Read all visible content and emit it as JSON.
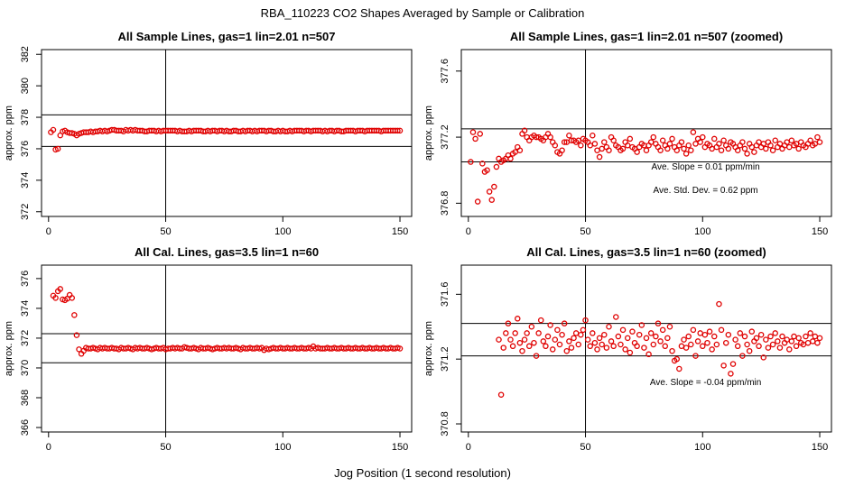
{
  "figure": {
    "title": "RBA_110223  CO2 Shapes Averaged by Sample or Calibration",
    "xlabel": "Jog Position (1 second resolution)",
    "marker_color": "#e00000"
  },
  "chart_data": [
    {
      "type": "scatter",
      "title": "All Sample Lines, gas=1 lin=2.01 n=507",
      "xlabel": "",
      "ylabel": "approx. ppm",
      "xlim": [
        -3,
        155
      ],
      "ylim": [
        371.7,
        382.3
      ],
      "x_ticks": [
        0,
        50,
        100,
        150
      ],
      "y_ticks": [
        372,
        374,
        376,
        378,
        380,
        382
      ],
      "hlines": [
        378.15,
        376.15
      ],
      "vline": 50,
      "annotations": [],
      "series": [
        {
          "start": 1,
          "values": [
            377.05,
            377.2,
            375.95,
            376.0,
            376.85,
            377.1,
            377.15,
            377.05,
            377.0,
            377.0,
            376.95,
            376.85,
            376.95,
            377.0,
            377.05,
            377.05,
            377.05,
            377.1,
            377.05,
            377.1,
            377.1,
            377.15,
            377.1,
            377.15,
            377.1,
            377.15,
            377.2,
            377.2,
            377.15,
            377.15,
            377.15,
            377.1,
            377.2,
            377.15,
            377.2,
            377.15,
            377.2,
            377.15,
            377.15,
            377.15,
            377.1,
            377.1,
            377.15,
            377.15,
            377.15,
            377.1,
            377.15,
            377.1,
            377.15,
            377.15,
            377.15,
            377.15,
            377.15,
            377.15,
            377.1,
            377.15,
            377.1,
            377.1,
            377.1,
            377.15,
            377.1,
            377.15,
            377.15,
            377.15,
            377.15,
            377.1,
            377.1,
            377.15,
            377.1,
            377.15,
            377.15,
            377.1,
            377.15,
            377.15,
            377.1,
            377.15,
            377.1,
            377.1,
            377.15,
            377.15,
            377.1,
            377.1,
            377.15,
            377.1,
            377.15,
            377.15,
            377.1,
            377.15,
            377.1,
            377.15,
            377.15,
            377.15,
            377.1,
            377.15,
            377.15,
            377.1,
            377.1,
            377.15,
            377.1,
            377.15,
            377.1,
            377.1,
            377.15,
            377.1,
            377.15,
            377.15,
            377.15,
            377.15,
            377.1,
            377.15,
            377.15,
            377.1,
            377.15,
            377.15,
            377.15,
            377.15,
            377.1,
            377.15,
            377.1,
            377.15,
            377.15,
            377.1,
            377.15,
            377.15,
            377.1,
            377.1,
            377.15,
            377.15,
            377.15,
            377.15,
            377.1,
            377.15,
            377.15,
            377.15,
            377.1,
            377.15,
            377.15,
            377.15,
            377.15,
            377.15,
            377.15,
            377.1,
            377.15,
            377.15,
            377.15,
            377.15,
            377.15,
            377.15,
            377.15,
            377.15
          ]
        }
      ]
    },
    {
      "type": "scatter",
      "title": "All Sample Lines, gas=1 lin=2.01 n=507 (zoomed)",
      "xlabel": "",
      "ylabel": "approx. ppm",
      "xlim": [
        -3,
        155
      ],
      "ylim": [
        376.72,
        377.73
      ],
      "x_ticks": [
        0,
        50,
        100,
        150
      ],
      "y_ticks": [
        376.8,
        377.2,
        377.6
      ],
      "y_tick_labels": [
        "376.8",
        "377.2",
        "377.6"
      ],
      "hlines": [
        377.25,
        377.05
      ],
      "vline": 50,
      "annotations": [
        "Ave. Slope =  0.01  ppm/min",
        "Ave. Std. Dev. =  0.62  ppm"
      ],
      "series": [
        {
          "start": 1,
          "values": [
            377.05,
            377.23,
            377.19,
            376.81,
            377.22,
            377.04,
            376.99,
            377.0,
            376.87,
            376.82,
            376.9,
            377.02,
            377.07,
            377.05,
            377.06,
            377.07,
            377.09,
            377.07,
            377.1,
            377.11,
            377.14,
            377.12,
            377.22,
            377.24,
            377.2,
            377.18,
            377.2,
            377.21,
            377.2,
            377.2,
            377.19,
            377.18,
            377.2,
            377.22,
            377.2,
            377.17,
            377.15,
            377.11,
            377.1,
            377.12,
            377.17,
            377.17,
            377.21,
            377.18,
            377.18,
            377.17,
            377.18,
            377.15,
            377.19,
            377.18,
            377.17,
            377.15,
            377.21,
            377.16,
            377.12,
            377.08,
            377.13,
            377.17,
            377.14,
            377.12,
            377.2,
            377.18,
            377.15,
            377.14,
            377.12,
            377.13,
            377.17,
            377.15,
            377.19,
            377.14,
            377.13,
            377.11,
            377.14,
            377.16,
            377.15,
            377.12,
            377.15,
            377.17,
            377.2,
            377.16,
            377.14,
            377.12,
            377.18,
            377.15,
            377.13,
            377.16,
            377.19,
            377.14,
            377.12,
            377.15,
            377.17,
            377.13,
            377.1,
            377.15,
            377.12,
            377.23,
            377.16,
            377.19,
            377.17,
            377.2,
            377.14,
            377.16,
            377.15,
            377.13,
            377.19,
            377.14,
            377.16,
            377.12,
            377.18,
            377.15,
            377.13,
            377.17,
            377.16,
            377.14,
            377.12,
            377.15,
            377.17,
            377.13,
            377.1,
            377.16,
            377.14,
            377.11,
            377.15,
            377.17,
            377.14,
            377.16,
            377.13,
            377.17,
            377.15,
            377.12,
            377.18,
            377.14,
            377.16,
            377.13,
            377.15,
            377.17,
            377.14,
            377.18,
            377.15,
            377.16,
            377.13,
            377.17,
            377.15,
            377.14,
            377.16,
            377.18,
            377.15,
            377.16,
            377.2,
            377.17
          ]
        }
      ]
    },
    {
      "type": "scatter",
      "title": "All Cal. Lines, gas=3.5 lin=1 n=60",
      "xlabel": "",
      "ylabel": "approx. ppm",
      "xlim": [
        -3,
        155
      ],
      "ylim": [
        365.7,
        376.9
      ],
      "x_ticks": [
        0,
        50,
        100,
        150
      ],
      "y_ticks": [
        366,
        368,
        370,
        372,
        374,
        376
      ],
      "hlines": [
        372.3,
        370.35
      ],
      "vline": 50,
      "annotations": [],
      "series": [
        {
          "start": 2,
          "values": [
            374.85,
            374.7,
            375.15,
            375.3,
            374.6,
            374.55,
            374.65,
            374.9,
            374.7,
            373.55,
            372.2,
            371.25,
            370.95,
            371.15,
            371.35,
            371.3,
            371.3,
            371.35,
            371.3,
            371.25,
            371.35,
            371.3,
            371.35,
            371.3,
            371.3,
            371.35,
            371.3,
            371.3,
            371.25,
            371.35,
            371.3,
            371.3,
            371.35,
            371.3,
            371.25,
            371.35,
            371.3,
            371.35,
            371.3,
            371.3,
            371.35,
            371.3,
            371.25,
            371.3,
            371.35,
            371.3,
            371.3,
            371.35,
            371.25,
            371.3,
            371.3,
            371.35,
            371.3,
            371.35,
            371.3,
            371.3,
            371.4,
            371.35,
            371.3,
            371.3,
            371.35,
            371.3,
            371.25,
            371.35,
            371.3,
            371.3,
            371.35,
            371.3,
            371.25,
            371.3,
            371.35,
            371.3,
            371.3,
            371.35,
            371.3,
            371.35,
            371.3,
            371.3,
            371.35,
            371.3,
            371.25,
            371.35,
            371.3,
            371.3,
            371.35,
            371.3,
            371.3,
            371.35,
            371.3,
            371.35,
            371.2,
            371.3,
            371.25,
            371.3,
            371.35,
            371.3,
            371.3,
            371.35,
            371.3,
            371.3,
            371.35,
            371.3,
            371.3,
            371.35,
            371.3,
            371.3,
            371.35,
            371.3,
            371.3,
            371.35,
            371.3,
            371.45,
            371.3,
            371.35,
            371.3,
            371.3,
            371.3,
            371.35,
            371.3,
            371.3,
            371.35,
            371.3,
            371.3,
            371.35,
            371.3,
            371.3,
            371.35,
            371.3,
            371.3,
            371.35,
            371.3,
            371.3,
            371.35,
            371.3,
            371.3,
            371.35,
            371.3,
            371.3,
            371.35,
            371.3,
            371.3,
            371.35,
            371.3,
            371.3,
            371.35,
            371.3,
            371.3,
            371.35,
            371.3
          ]
        }
      ]
    },
    {
      "type": "scatter",
      "title": "All Cal. Lines, gas=3.5 lin=1 n=60 (zoomed)",
      "xlabel": "",
      "ylabel": "approx. ppm",
      "xlim": [
        -3,
        155
      ],
      "ylim": [
        370.75,
        371.78
      ],
      "x_ticks": [
        0,
        50,
        100,
        150
      ],
      "y_ticks": [
        370.8,
        371.2,
        371.6
      ],
      "y_tick_labels": [
        "370.8",
        "371.2",
        "371.6"
      ],
      "hlines": [
        371.42,
        371.22
      ],
      "vline": 50,
      "annotations": [
        "Ave. Slope =  -0.04  ppm/min"
      ],
      "series": [
        {
          "start": 13,
          "values": [
            371.32,
            370.98,
            371.27,
            371.36,
            371.42,
            371.32,
            371.28,
            371.36,
            371.45,
            371.3,
            371.25,
            371.32,
            371.36,
            371.28,
            371.4,
            371.3,
            371.22,
            371.36,
            371.44,
            371.31,
            371.28,
            371.34,
            371.41,
            371.26,
            371.32,
            371.38,
            371.29,
            371.35,
            371.42,
            371.25,
            371.31,
            371.27,
            371.33,
            371.36,
            371.29,
            371.35,
            371.38,
            371.44,
            371.32,
            371.28,
            371.36,
            371.3,
            371.26,
            371.33,
            371.29,
            371.35,
            371.27,
            371.4,
            371.31,
            371.28,
            371.46,
            371.34,
            371.29,
            371.38,
            371.26,
            371.33,
            371.24,
            371.37,
            371.3,
            371.28,
            371.35,
            371.41,
            371.27,
            371.33,
            371.23,
            371.36,
            371.29,
            371.34,
            371.42,
            371.31,
            371.38,
            371.28,
            371.33,
            371.4,
            371.25,
            371.19,
            371.2,
            371.14,
            371.28,
            371.32,
            371.27,
            371.34,
            371.29,
            371.38,
            371.22,
            371.31,
            371.36,
            371.28,
            371.35,
            371.3,
            371.37,
            371.26,
            371.34,
            371.29,
            371.54,
            371.38,
            371.16,
            371.3,
            371.35,
            371.11,
            371.17,
            371.32,
            371.28,
            371.36,
            371.22,
            371.34,
            371.29,
            371.25,
            371.37,
            371.31,
            371.33,
            371.28,
            371.35,
            371.21,
            371.32,
            371.27,
            371.34,
            371.29,
            371.36,
            371.31,
            371.27,
            371.34,
            371.3,
            371.32,
            371.26,
            371.31,
            371.34,
            371.28,
            371.33,
            371.3,
            371.29,
            371.34,
            371.3,
            371.36,
            371.31,
            371.34,
            371.3,
            371.33
          ]
        }
      ]
    }
  ]
}
